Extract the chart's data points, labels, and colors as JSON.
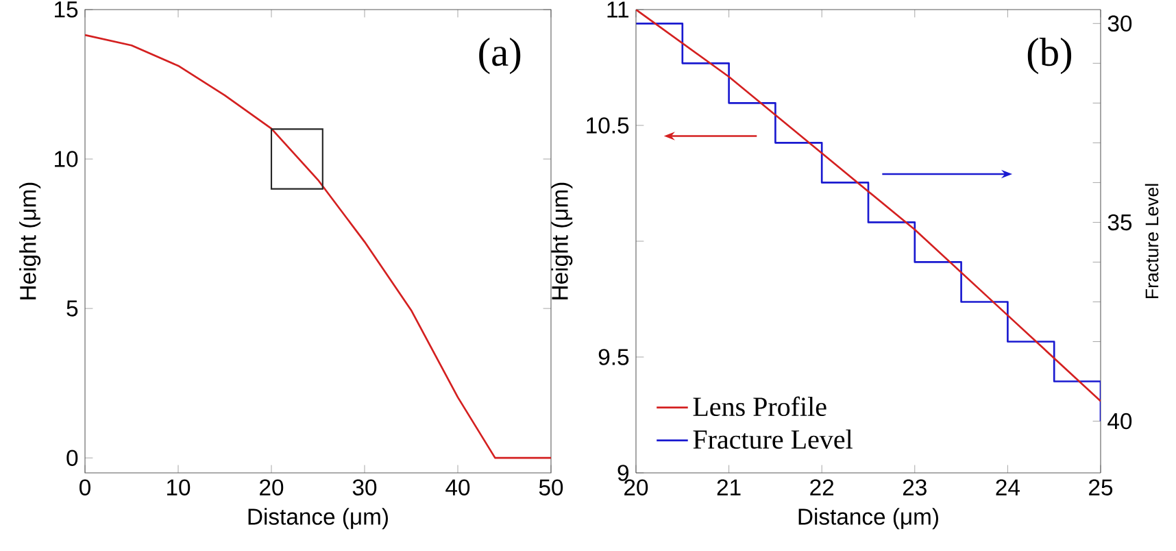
{
  "chart_data": [
    {
      "type": "line",
      "xlabel": "Distance (μm)",
      "ylabel": "Height (μm)",
      "annotations": [
        "(a)"
      ],
      "xlim": [
        0,
        50
      ],
      "ylim": [
        -0.5,
        15
      ],
      "xticks": [
        0,
        10,
        20,
        30,
        40,
        50
      ],
      "yticks": [
        0,
        5,
        10,
        15
      ],
      "x": [
        0,
        5,
        10,
        15,
        20,
        25,
        30,
        35,
        40,
        44,
        50
      ],
      "series": [
        {
          "color": "#d42020",
          "values": [
            14.15,
            13.8,
            13.12,
            12.13,
            11.02,
            9.3,
            7.23,
            4.94,
            2.03,
            0,
            0
          ]
        }
      ]
    },
    {
      "type": "line",
      "xlabel": "Distance (μm)",
      "ylabel": "Height (μm)",
      "y2label": "Fracture Level",
      "annotations": [
        "(b)"
      ],
      "legend": "bottom left",
      "xlim": [
        20,
        25
      ],
      "ylim": [
        9,
        11
      ],
      "y2lim": [
        41.3,
        29.65
      ],
      "xticks": [
        20,
        21,
        22,
        23,
        24,
        25
      ],
      "yticks": [
        9,
        9.5,
        {
          "value": 10,
          "label": null
        },
        10.5,
        11
      ],
      "y2ticks": [
        30,
        {
          "value": 31,
          "label": null
        },
        {
          "value": 32,
          "label": null
        },
        {
          "value": 33,
          "label": null
        },
        {
          "value": 34,
          "label": null
        },
        35,
        {
          "value": 36,
          "label": null
        },
        {
          "value": 37,
          "label": null
        },
        {
          "value": 38,
          "label": null
        },
        {
          "value": 39,
          "label": null
        },
        40
      ],
      "series": [
        {
          "name": "Lens Profile",
          "color": "#d42020",
          "x": [
            20,
            21,
            22,
            23,
            24,
            25
          ],
          "values": [
            11.0,
            10.71,
            10.38,
            10.05,
            9.68,
            9.31
          ]
        },
        {
          "name": "Fracture Level",
          "type": "step",
          "axis": "y2",
          "color": "#1a1ad0",
          "x": [
            20,
            20.5,
            21,
            21.5,
            22,
            22.5,
            23,
            23.5,
            24,
            24.5,
            25
          ],
          "values": [
            30,
            31,
            32,
            33,
            34,
            35,
            36,
            37,
            38,
            39,
            40
          ]
        }
      ]
    }
  ]
}
